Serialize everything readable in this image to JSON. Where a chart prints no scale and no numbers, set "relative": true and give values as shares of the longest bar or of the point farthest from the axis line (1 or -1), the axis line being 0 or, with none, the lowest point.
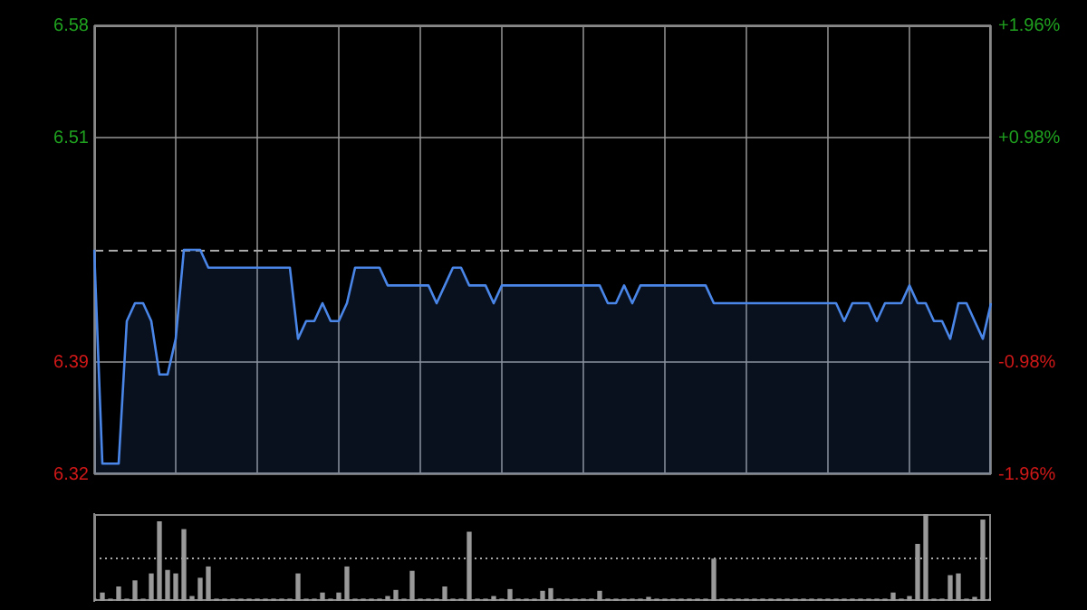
{
  "chart_data": [
    {
      "type": "area",
      "categories": [
        null,
        null,
        null,
        null,
        null,
        null,
        null,
        null,
        null,
        null,
        null,
        null,
        null,
        null,
        null,
        null,
        null,
        null,
        null,
        null,
        null,
        null,
        null,
        null,
        null,
        null,
        null,
        null,
        null,
        null,
        null,
        null,
        null,
        null,
        null,
        null,
        null,
        null,
        null,
        null,
        null,
        null,
        null,
        null,
        null,
        null,
        null,
        null,
        null,
        null,
        null,
        null,
        null,
        null,
        null,
        null,
        null,
        null,
        null,
        null,
        null,
        null,
        null,
        null,
        null,
        null,
        null,
        null,
        null,
        null,
        null,
        null,
        null,
        null,
        null,
        null,
        null,
        null,
        null,
        null,
        null,
        null,
        null,
        null,
        null,
        null,
        null,
        null,
        null,
        null,
        null,
        null,
        null,
        null,
        null,
        null,
        null,
        null,
        null,
        null,
        null,
        null,
        null,
        null,
        null,
        null,
        null,
        null,
        null,
        null,
        null
      ],
      "series": [
        {
          "color": "#4a86e8",
          "values": [
            6.45,
            6.33,
            6.33,
            6.33,
            6.41,
            6.42,
            6.42,
            6.41,
            6.38,
            6.38,
            6.4,
            6.45,
            6.45,
            6.45,
            6.44,
            6.44,
            6.44,
            6.44,
            6.44,
            6.44,
            6.44,
            6.44,
            6.44,
            6.44,
            6.44,
            6.4,
            6.41,
            6.41,
            6.42,
            6.41,
            6.41,
            6.42,
            6.44,
            6.44,
            6.44,
            6.44,
            6.43,
            6.43,
            6.43,
            6.43,
            6.43,
            6.43,
            6.42,
            6.43,
            6.44,
            6.44,
            6.43,
            6.43,
            6.43,
            6.42,
            6.43,
            6.43,
            6.43,
            6.43,
            6.43,
            6.43,
            6.43,
            6.43,
            6.43,
            6.43,
            6.43,
            6.43,
            6.43,
            6.42,
            6.42,
            6.43,
            6.42,
            6.43,
            6.43,
            6.43,
            6.43,
            6.43,
            6.43,
            6.43,
            6.43,
            6.43,
            6.42,
            6.42,
            6.42,
            6.42,
            6.42,
            6.42,
            6.42,
            6.42,
            6.42,
            6.42,
            6.42,
            6.42,
            6.42,
            6.42,
            6.42,
            6.42,
            6.41,
            6.42,
            6.42,
            6.42,
            6.41,
            6.42,
            6.42,
            6.42,
            6.43,
            6.42,
            6.42,
            6.41,
            6.41,
            6.4,
            6.42,
            6.42,
            6.41,
            6.4,
            6.42
          ]
        }
      ],
      "ylim": [
        6.324,
        6.576
      ],
      "yticks": [
        {
          "value": 6.324,
          "label": "6.32"
        },
        {
          "value": 6.387,
          "label": "6.39"
        },
        {
          "value": 6.513,
          "label": "6.51"
        },
        {
          "value": 6.576,
          "label": "6.58"
        }
      ],
      "y2lim": [
        -1.96,
        1.96
      ],
      "y2ticks": [
        {
          "value": -1.96,
          "label": "-1.96%"
        },
        {
          "value": -0.98,
          "label": "-0.98%"
        },
        {
          "value": 0.98,
          "label": "+0.98%"
        },
        {
          "value": 1.96,
          "label": "+1.96%"
        }
      ],
      "ref_lines": [
        {
          "axis": "y",
          "value": 6.45,
          "line_style": "dashed"
        }
      ],
      "grid": true,
      "tick_labels": "y"
    },
    {
      "type": "bar",
      "categories": [
        null,
        null,
        null,
        null,
        null,
        null,
        null,
        null,
        null,
        null,
        null,
        null,
        null,
        null,
        null,
        null,
        null,
        null,
        null,
        null,
        null,
        null,
        null,
        null,
        null,
        null,
        null,
        null,
        null,
        null,
        null,
        null,
        null,
        null,
        null,
        null,
        null,
        null,
        null,
        null,
        null,
        null,
        null,
        null,
        null,
        null,
        null,
        null,
        null,
        null,
        null,
        null,
        null,
        null,
        null,
        null,
        null,
        null,
        null,
        null,
        null,
        null,
        null,
        null,
        null,
        null,
        null,
        null,
        null,
        null,
        null,
        null,
        null,
        null,
        null,
        null,
        null,
        null,
        null,
        null,
        null,
        null,
        null,
        null,
        null,
        null,
        null,
        null,
        null,
        null,
        null,
        null,
        null,
        null,
        null,
        null,
        null,
        null,
        null,
        null,
        null,
        null,
        null,
        null,
        null,
        null,
        null,
        null,
        null,
        null,
        null
      ],
      "color": "#999999",
      "values": [
        0.02,
        0.09,
        0.02,
        0.16,
        0.02,
        0.23,
        0.02,
        0.31,
        0.91,
        0.35,
        0.31,
        0.82,
        0.05,
        0.26,
        0.39,
        0.02,
        0.02,
        0.02,
        0.02,
        0.02,
        0.02,
        0.02,
        0.02,
        0.02,
        0.02,
        0.31,
        0.02,
        0.02,
        0.09,
        0.02,
        0.09,
        0.39,
        0.02,
        0.02,
        0.02,
        0.02,
        0.05,
        0.12,
        0.02,
        0.34,
        0.02,
        0.02,
        0.02,
        0.16,
        0.02,
        0.02,
        0.79,
        0.02,
        0.02,
        0.05,
        0.02,
        0.13,
        0.02,
        0.02,
        0.02,
        0.11,
        0.14,
        0.02,
        0.02,
        0.02,
        0.02,
        0.02,
        0.11,
        0.02,
        0.02,
        0.02,
        0.02,
        0.02,
        0.04,
        0.02,
        0.02,
        0.02,
        0.02,
        0.02,
        0.02,
        0.02,
        0.48,
        0.02,
        0.02,
        0.02,
        0.02,
        0.02,
        0.02,
        0.02,
        0.02,
        0.02,
        0.02,
        0.02,
        0.02,
        0.02,
        0.02,
        0.02,
        0.02,
        0.02,
        0.02,
        0.02,
        0.02,
        0.02,
        0.09,
        0.02,
        0.05,
        0.65,
        1,
        0.02,
        0.02,
        0.29,
        0.31,
        0.02,
        0.04,
        0.93,
        0.02
      ],
      "relative": true,
      "ref_lines": [
        {
          "axis": "y",
          "value": 0.5,
          "line_style": "dotted"
        }
      ],
      "tick_labels": false
    }
  ]
}
